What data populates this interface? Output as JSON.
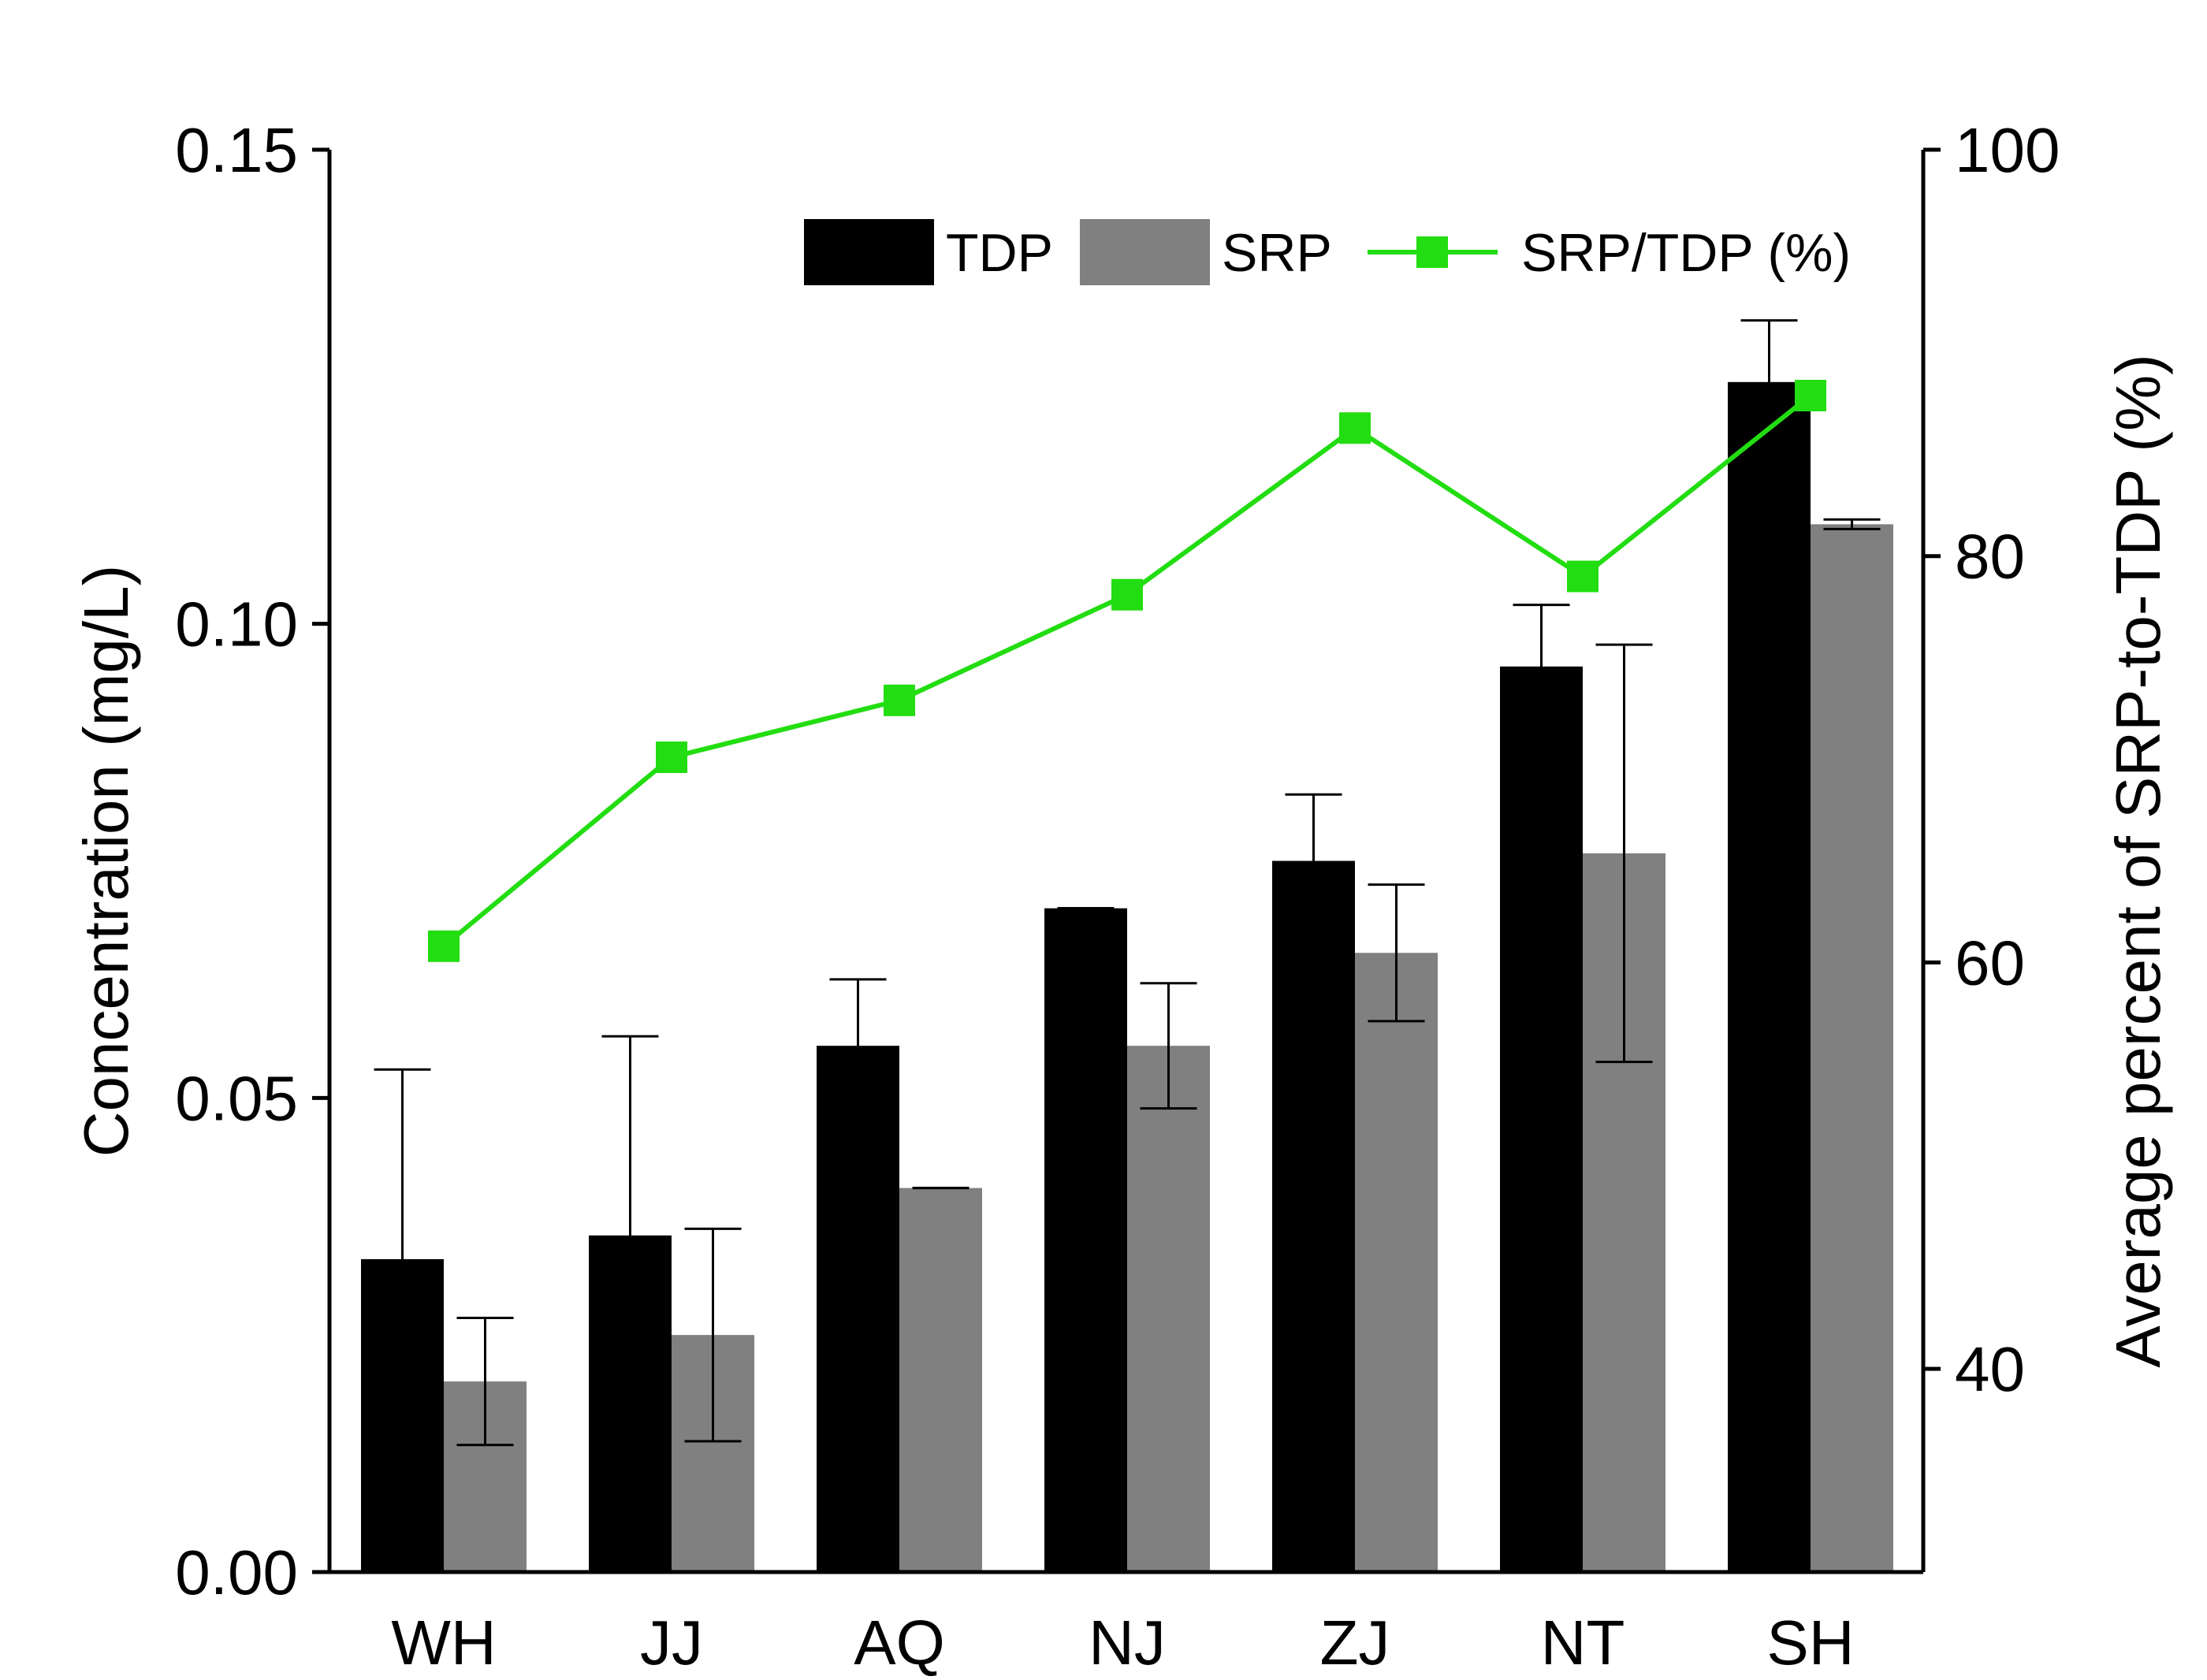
{
  "chart_data": {
    "type": "bar",
    "categories": [
      "WH",
      "JJ",
      "AQ",
      "NJ",
      "ZJ",
      "NT",
      "SH"
    ],
    "series": [
      {
        "name": "TDP",
        "axis": "left",
        "color": "#000000",
        "values": [
          0.033,
          0.0355,
          0.0555,
          0.07,
          0.075,
          0.0955,
          0.1255
        ],
        "error": [
          0.02,
          0.021,
          0.007,
          0.0,
          0.007,
          0.0065,
          0.0065
        ]
      },
      {
        "name": "SRP",
        "axis": "left",
        "color": "#808080",
        "values": [
          0.0201,
          0.025,
          0.0405,
          0.0555,
          0.0653,
          0.0758,
          0.1105
        ],
        "error": [
          0.0067,
          0.0112,
          0.0,
          0.0066,
          0.0072,
          0.022,
          0.0005
        ]
      },
      {
        "name": "SRP/TDP (%)",
        "type": "line",
        "axis": "right",
        "color": "#22dd11",
        "values": [
          60.8,
          70.1,
          72.9,
          78.1,
          86.3,
          79.0,
          87.9
        ]
      }
    ],
    "ylabel_left": "Concentration (mg/L)",
    "ylabel_right": "Average percent of SRP-to-TDP  (%)",
    "ylim_left": [
      0,
      0.15
    ],
    "ylim_right": [
      30,
      100
    ],
    "yticks_left": [
      "0.00",
      "0.05",
      "0.10",
      "0.15"
    ],
    "yticks_right": [
      "40",
      "60",
      "80",
      "100"
    ],
    "legend": [
      "TDP",
      "SRP",
      "SRP/TDP (%)"
    ],
    "legend_position": "top-right"
  }
}
